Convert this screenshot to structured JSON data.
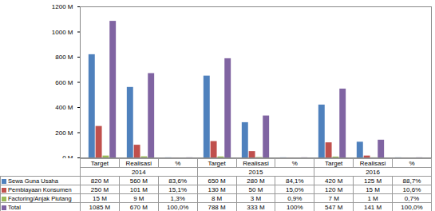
{
  "chart_data": {
    "type": "bar",
    "categories": [
      "Target",
      "Realisasi",
      "%",
      "Target",
      "Realisasi",
      "%",
      "Target",
      "Realisasi",
      "%"
    ],
    "groups": [
      {
        "label": "2014",
        "start": 0,
        "end": 2
      },
      {
        "label": "2015",
        "start": 3,
        "end": 5
      },
      {
        "label": "2016",
        "start": 6,
        "end": 8
      }
    ],
    "series": [
      {
        "name": "Sewa Guna Usaha",
        "color": "#4f81bd",
        "values": [
          820,
          560,
          0.836,
          650,
          280,
          0.841,
          420,
          125,
          0.887
        ],
        "value_labels": [
          "820 M",
          "560 M",
          "83,6%",
          "650 M",
          "280 M",
          "84,1%",
          "420 M",
          "125 M",
          "88,7%"
        ]
      },
      {
        "name": "Pembiayaan Konsumen",
        "color": "#c0504d",
        "values": [
          250,
          101,
          0.151,
          130,
          50,
          0.15,
          120,
          15,
          0.106
        ],
        "value_labels": [
          "250 M",
          "101 M",
          "15,1%",
          "130 M",
          "50 M",
          "15,0%",
          "120 M",
          "15 M",
          "10,6%"
        ]
      },
      {
        "name": "Factoring/Anjak Piutang",
        "color": "#9bbb59",
        "values": [
          15,
          9,
          0.013,
          8,
          3,
          0.009,
          7,
          1,
          0.007
        ],
        "value_labels": [
          "15 M",
          "9 M",
          "1,3%",
          "8 M",
          "3 M",
          "0,9%",
          "7 M",
          "1 M",
          "0,7%"
        ]
      },
      {
        "name": "Total",
        "color": "#8064a2",
        "values": [
          1085,
          670,
          1.0,
          788,
          333,
          1.0,
          547,
          141,
          1.0
        ],
        "value_labels": [
          "1085 M",
          "670 M",
          "100,0%",
          "788 M",
          "333 M",
          "100%",
          "547 M",
          "141 M",
          "100,0%"
        ]
      }
    ],
    "ylim": [
      0,
      1200
    ],
    "yticks": [
      {
        "value": 0,
        "label": "0 M"
      },
      {
        "value": 200,
        "label": "200 M"
      },
      {
        "value": 400,
        "label": "400 M"
      },
      {
        "value": 600,
        "label": "600 M"
      },
      {
        "value": 800,
        "label": "800 M"
      },
      {
        "value": 1000,
        "label": "1000 M"
      },
      {
        "value": 1200,
        "label": "1200 M"
      }
    ],
    "grid": false
  }
}
